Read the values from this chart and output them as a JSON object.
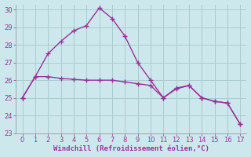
{
  "x_short": [
    0,
    1,
    2,
    3,
    4,
    5,
    6,
    7,
    8,
    9,
    10,
    11,
    12,
    13,
    14,
    15,
    16,
    17
  ],
  "y_upper": [
    25.0,
    26.2,
    27.5,
    28.2,
    28.8,
    29.1,
    30.1,
    29.5,
    28.5,
    27.0,
    26.0,
    25.0,
    25.5,
    25.7,
    25.0,
    24.8,
    24.7,
    23.5
  ],
  "y_lower": [
    25.0,
    26.2,
    26.2,
    26.1,
    26.05,
    26.0,
    26.0,
    26.0,
    25.9,
    25.8,
    25.7,
    25.0,
    25.55,
    25.7,
    25.0,
    24.8,
    24.7,
    23.5
  ],
  "line_color": "#993399",
  "bg_color": "#cce8ec",
  "grid_color": "#aacccc",
  "xlabel": "Windchill (Refroidissement éolien,°C)",
  "xlabel_color": "#993399",
  "tick_color": "#993399",
  "xlim": [
    -0.5,
    17.5
  ],
  "ylim": [
    23,
    30.3
  ],
  "yticks": [
    23,
    24,
    25,
    26,
    27,
    28,
    29,
    30
  ],
  "xticks": [
    0,
    1,
    2,
    3,
    4,
    5,
    6,
    7,
    8,
    9,
    10,
    11,
    12,
    13,
    14,
    15,
    16,
    17
  ],
  "marker_size": 4,
  "line_width": 1.0
}
